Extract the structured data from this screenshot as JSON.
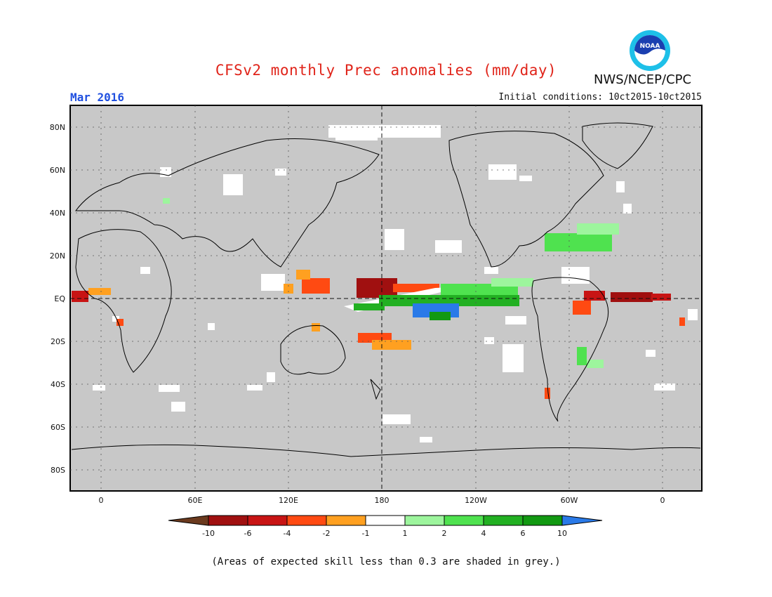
{
  "header": {
    "title": "CFSv2 monthly Prec anomalies (mm/day)",
    "agency": "NWS/NCEP/CPC",
    "logo_text": "NOAA",
    "valid_month": "Mar 2016",
    "initial_conditions": "Initial conditions: 10ct2015-10ct2015"
  },
  "map": {
    "lon_labels": [
      "0",
      "60E",
      "120E",
      "180",
      "120W",
      "60W",
      "0"
    ],
    "lat_labels": [
      "80N",
      "60N",
      "40N",
      "20N",
      "EQ",
      "20S",
      "40S",
      "60S",
      "80S"
    ],
    "grid": "dotted",
    "background_shade": "#c8c8c8",
    "coastline_color": "#000000"
  },
  "colorbar": {
    "tick_labels": [
      "-10",
      "-6",
      "-4",
      "-2",
      "-1",
      "1",
      "2",
      "4",
      "6",
      "10"
    ],
    "colors": [
      "#6b3a1e",
      "#a01010",
      "#c81414",
      "#ff4a12",
      "#ffa020",
      "#ffffff",
      "#9df59d",
      "#4fe24f",
      "#22b022",
      "#129912",
      "#2a7ae8"
    ]
  },
  "footnote": "(Areas of expected skill less than 0.3 are shaded in grey.)"
}
